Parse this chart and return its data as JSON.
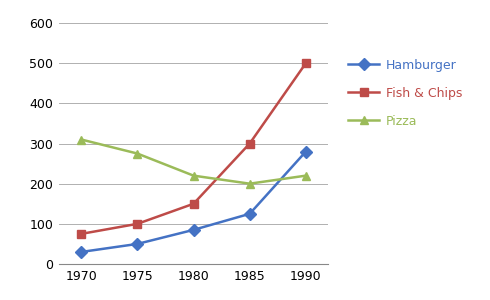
{
  "years": [
    1970,
    1975,
    1980,
    1985,
    1990
  ],
  "hamburger": [
    30,
    50,
    85,
    125,
    280
  ],
  "fish_and_chips": [
    75,
    100,
    150,
    300,
    500
  ],
  "pizza": [
    310,
    275,
    220,
    200,
    220
  ],
  "hamburger_color": "#4472C4",
  "fish_chips_color": "#BE4B48",
  "pizza_color": "#9BBB59",
  "hamburger_label": "Hamburger",
  "fish_chips_label": "Fish & Chips",
  "pizza_label": "Pizza",
  "ylim": [
    0,
    620
  ],
  "yticks": [
    0,
    100,
    200,
    300,
    400,
    500,
    600
  ],
  "marker_hamburger": "D",
  "marker_fish": "s",
  "marker_pizza": "^",
  "linewidth": 1.8,
  "markersize": 6,
  "background_color": "#ffffff",
  "grid_color": "#b0b0b0"
}
